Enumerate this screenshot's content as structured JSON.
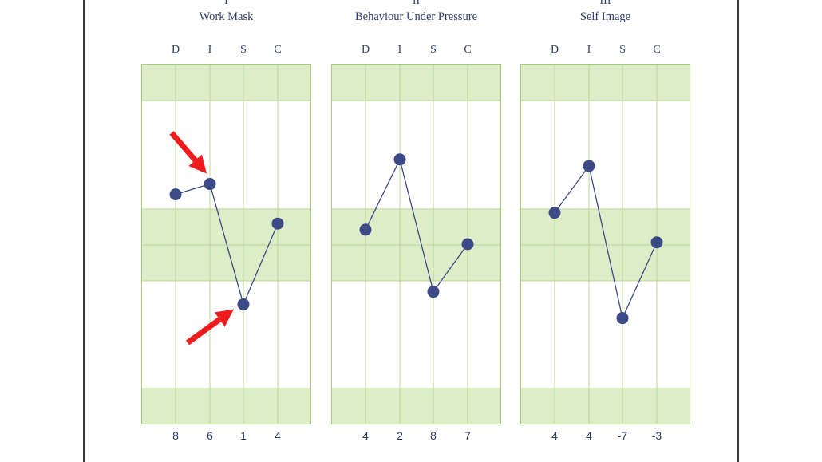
{
  "colors": {
    "band": "#dcedc8",
    "grid": "#b7d98f",
    "frame": "#a5cf7c",
    "point": "#3c4a86",
    "line": "#3c4a86",
    "text": "#2e3b6e",
    "arrow": "#ee1c1c",
    "page_shadow": "#3a3a3a"
  },
  "chart_data": [
    {
      "type": "line",
      "numeral": "I",
      "title": "Work Mask",
      "categories": [
        "D",
        "I",
        "S",
        "C"
      ],
      "values": [
        8,
        6,
        1,
        4
      ],
      "plot_positions": [
        0.638,
        0.667,
        0.333,
        0.557
      ],
      "annotations": [
        {
          "type": "arrow",
          "points_to": "I",
          "description": "red arrow pointing at I"
        },
        {
          "type": "arrow",
          "points_to": "S",
          "description": "red arrow pointing at S"
        }
      ]
    },
    {
      "type": "line",
      "numeral": "II",
      "title": "Behaviour Under Pressure",
      "categories": [
        "D",
        "I",
        "S",
        "C"
      ],
      "values": [
        4,
        2,
        8,
        7
      ],
      "plot_positions": [
        0.54,
        0.735,
        0.368,
        0.5
      ]
    },
    {
      "type": "line",
      "numeral": "III",
      "title": "Self Image",
      "categories": [
        "D",
        "I",
        "S",
        "C"
      ],
      "values": [
        4,
        4,
        -7,
        -3
      ],
      "plot_positions": [
        0.587,
        0.717,
        0.295,
        0.505
      ]
    }
  ]
}
